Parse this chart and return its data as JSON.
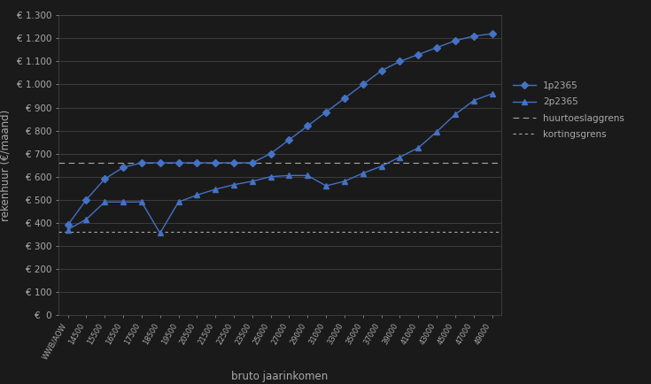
{
  "background_color": "#1a1a1a",
  "plot_bg_color": "#1a1a1a",
  "grid_color": "#4a4a4a",
  "text_color": "#aaaaaa",
  "line_color_1p": "#4472c4",
  "line_color_2p": "#4472c4",
  "huurtoeslaggrens": 660,
  "kortingsgrens": 360,
  "xlabel": "bruto jaarinkomen",
  "ylabel": "rekenhuur (€/maand)",
  "x_labels": [
    "WWB/AOW",
    "14500",
    "15500",
    "16500",
    "17500",
    "18500",
    "19500",
    "20500",
    "21500",
    "22500",
    "23500",
    "25000",
    "27000",
    "29000",
    "31000",
    "33000",
    "35000",
    "37000",
    "39000",
    "41000",
    "43000",
    "45000",
    "47000",
    "49000"
  ],
  "ylim": [
    0,
    1300
  ],
  "yticks": [
    0,
    100,
    200,
    300,
    400,
    500,
    600,
    700,
    800,
    900,
    1000,
    1100,
    1200,
    1300
  ],
  "series_1p_y": [
    390,
    500,
    590,
    640,
    660,
    660,
    660,
    660,
    660,
    660,
    660,
    700,
    760,
    820,
    880,
    940,
    1000,
    1060,
    1100,
    1130,
    1160,
    1190,
    1210,
    1220
  ],
  "series_2p_y": [
    370,
    415,
    490,
    490,
    490,
    355,
    490,
    520,
    545,
    565,
    580,
    600,
    605,
    605,
    560,
    580,
    615,
    645,
    685,
    725,
    795,
    870,
    930,
    960
  ]
}
